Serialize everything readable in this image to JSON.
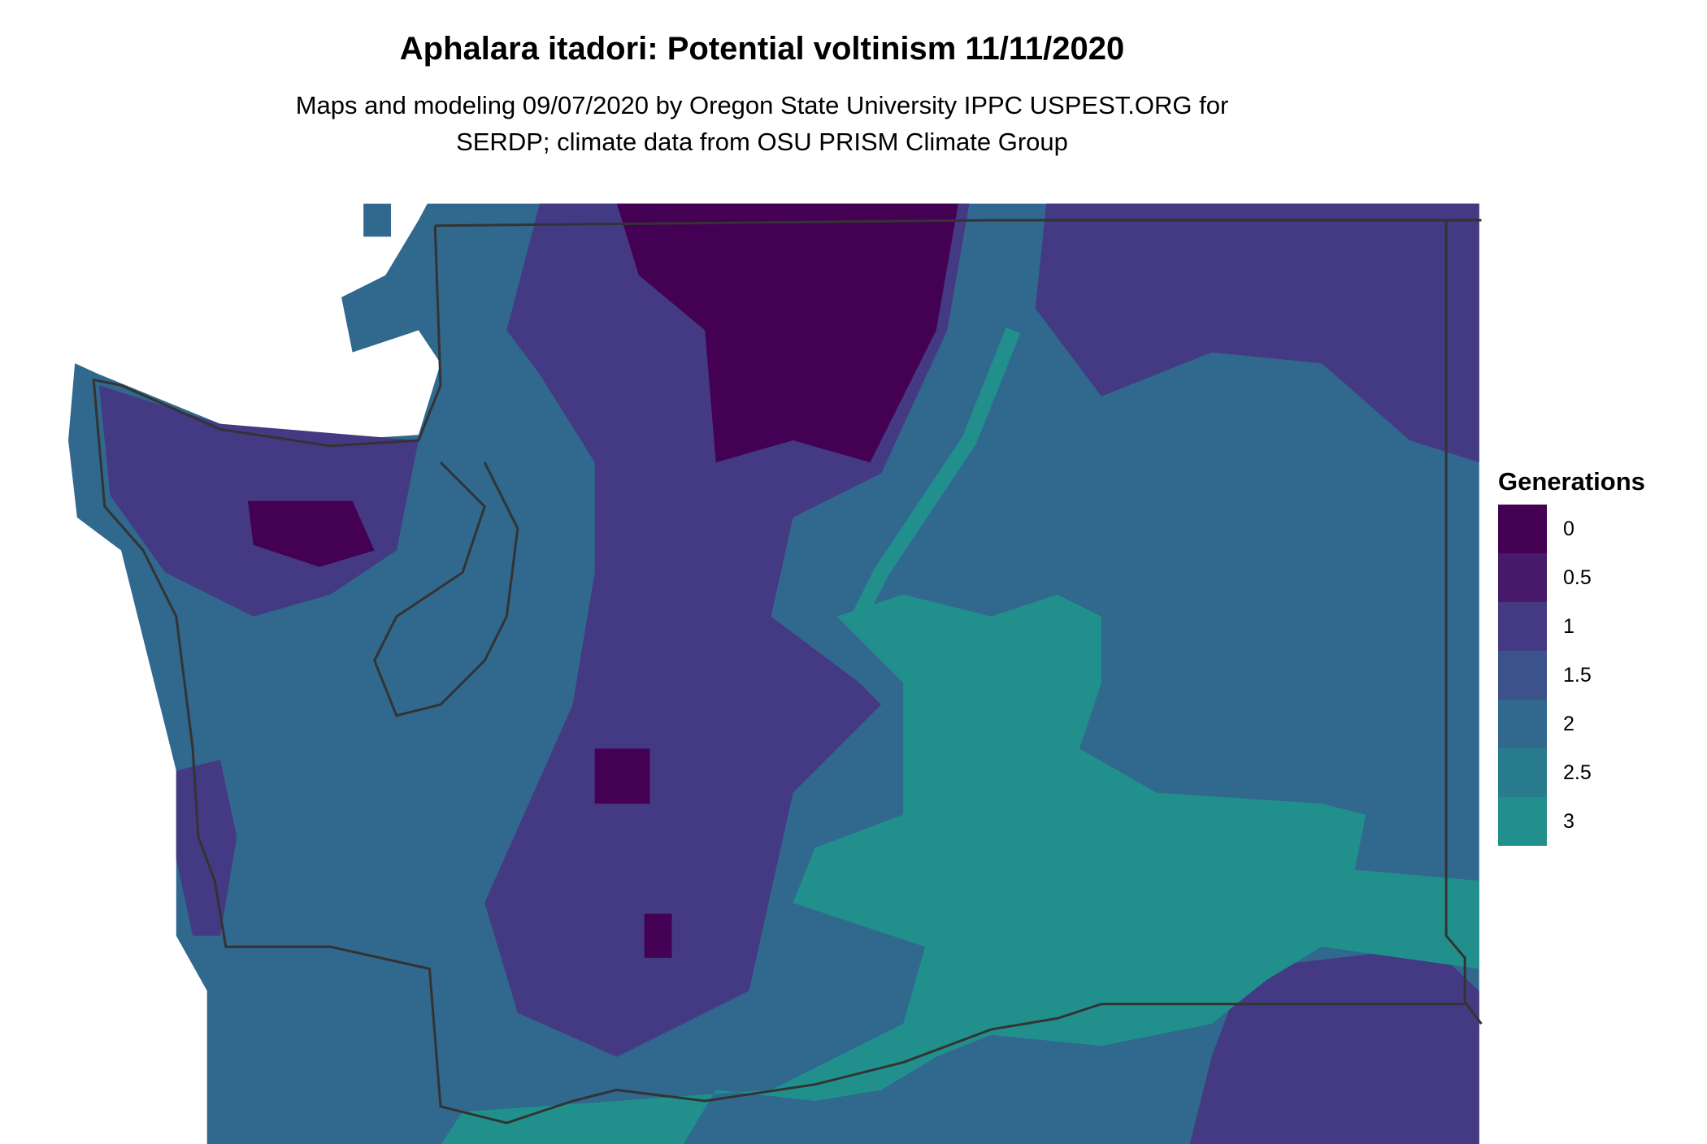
{
  "title": "Aphalara itadori: Potential voltinism 11/11/2020",
  "subtitle_line1": "Maps and modeling 09/07/2020 by Oregon State University IPPC USPEST.ORG for",
  "subtitle_line2": "SERDP; climate data from OSU PRISM Climate Group",
  "legend": {
    "title": "Generations",
    "items": [
      {
        "label": "0",
        "color": "#440154"
      },
      {
        "label": "0.5",
        "color": "#481a6c"
      },
      {
        "label": "1",
        "color": "#443a83"
      },
      {
        "label": "1.5",
        "color": "#3b528b"
      },
      {
        "label": "2",
        "color": "#31688e"
      },
      {
        "label": "2.5",
        "color": "#287c8e"
      },
      {
        "label": "3",
        "color": "#21908d"
      }
    ]
  },
  "map": {
    "region": "Washington State",
    "border_color": "#333333"
  }
}
